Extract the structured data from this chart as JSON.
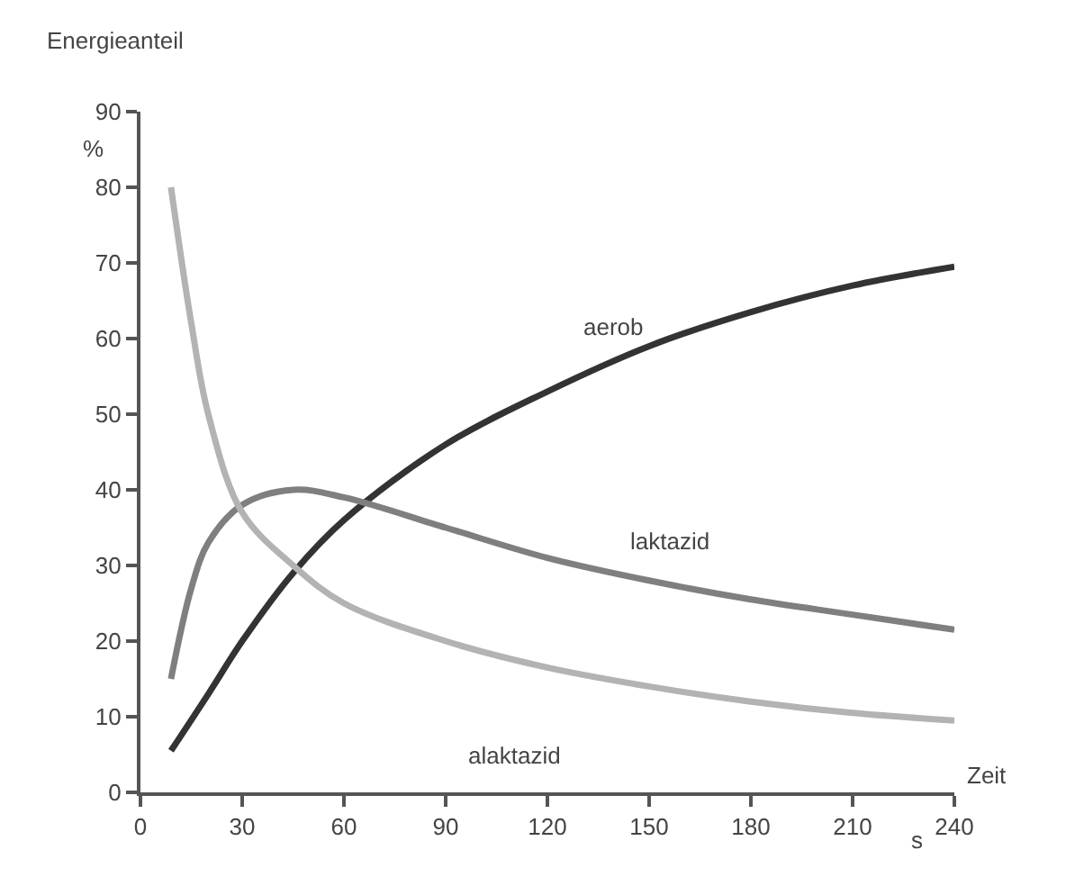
{
  "chart_data": {
    "type": "line",
    "ylabel": "Energieanteil",
    "xlabel": "Zeit",
    "xlim": [
      0,
      240
    ],
    "xticks": [
      0,
      30,
      60,
      90,
      120,
      150,
      180,
      210,
      240
    ],
    "ylim": [
      0,
      90
    ],
    "yticks": [
      0,
      10,
      20,
      30,
      40,
      50,
      60,
      70,
      80,
      90
    ],
    "marker": "none",
    "line_style": "solid",
    "series": [
      {
        "name": "aerob",
        "color": "#333333",
        "x": [
          9,
          20,
          30,
          45,
          60,
          90,
          120,
          150,
          180,
          210,
          240
        ],
        "values": [
          5.5,
          13,
          20,
          29,
          36,
          46,
          53,
          59,
          63.5,
          67,
          69.5
        ]
      },
      {
        "name": "laktazid",
        "color": "#7f7f7f",
        "x": [
          9,
          15,
          20,
          30,
          45,
          60,
          90,
          120,
          150,
          180,
          210,
          240
        ],
        "values": [
          15,
          27,
          33,
          38,
          40,
          39,
          35,
          31,
          28,
          25.5,
          23.5,
          21.5
        ]
      },
      {
        "name": "alaktazid",
        "color": "#b3b3b3",
        "x": [
          9,
          15,
          20,
          30,
          45,
          60,
          90,
          120,
          150,
          180,
          210,
          240
        ],
        "values": [
          80,
          62,
          50,
          37,
          30,
          25,
          20,
          16.5,
          14,
          12,
          10.5,
          9.5
        ]
      }
    ],
    "annotations": [
      "%",
      "s"
    ]
  }
}
